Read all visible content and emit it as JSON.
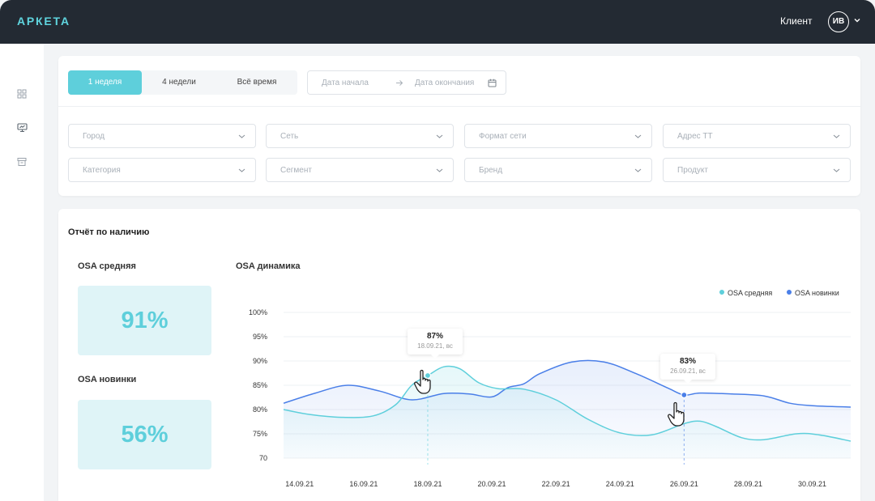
{
  "header": {
    "logo": "АРКЕТА",
    "client_label": "Клиент",
    "avatar_initials": "ИВ"
  },
  "sidebar": {
    "items": [
      {
        "icon": "grid-icon"
      },
      {
        "icon": "monitor-icon"
      },
      {
        "icon": "archive-icon"
      }
    ]
  },
  "period": {
    "tabs": [
      {
        "label": "1 неделя",
        "active": true
      },
      {
        "label": "4 недели",
        "active": false
      },
      {
        "label": "Всё время",
        "active": false
      }
    ],
    "start_placeholder": "Дата начала",
    "end_placeholder": "Дата окончания"
  },
  "filters": {
    "row1": [
      "Город",
      "Сеть",
      "Формат сети",
      "Адрес ТТ"
    ],
    "row2": [
      "Категория",
      "Сегмент",
      "Бренд",
      "Продукт"
    ]
  },
  "report": {
    "title": "Отчёт по наличию",
    "osa_avg_label": "OSA средняя",
    "osa_avg_value": "91%",
    "osa_new_label": "OSA новинки",
    "osa_new_value": "56%",
    "dynamics_title": "OSA динамика"
  },
  "colors": {
    "accent": "#5ecfdb",
    "blue": "#4a7fe8",
    "header": "#232a33"
  },
  "chart_data": {
    "type": "line",
    "title": "OSA динамика",
    "legend": [
      "OSA средняя",
      "OSA новинки"
    ],
    "legend_position": "top-right",
    "y_ticks": [
      "100%",
      "95%",
      "90%",
      "85%",
      "80%",
      "75%",
      "70"
    ],
    "ylim": [
      70,
      100
    ],
    "x_ticks": [
      "14.09.21",
      "16.09.21",
      "18.09.21",
      "20.09.21",
      "22.09.21",
      "24.09.21",
      "26.09.21",
      "28.09.21",
      "30.09.21"
    ],
    "xlim": [
      13.5,
      31.2
    ],
    "series": [
      {
        "name": "OSA средняя",
        "color": "#5ecfdb",
        "points": [
          [
            13.5,
            80
          ],
          [
            14.3,
            79
          ],
          [
            15.3,
            78.4
          ],
          [
            16.3,
            78.7
          ],
          [
            17.0,
            81
          ],
          [
            17.5,
            85
          ],
          [
            18.0,
            87
          ],
          [
            18.5,
            88.8
          ],
          [
            19.0,
            88.4
          ],
          [
            19.6,
            85.5
          ],
          [
            20.2,
            84.3
          ],
          [
            21.0,
            84.2
          ],
          [
            22.0,
            82
          ],
          [
            23.0,
            78
          ],
          [
            24.0,
            75.2
          ],
          [
            25.0,
            74.8
          ],
          [
            26.0,
            77.1
          ],
          [
            26.5,
            77.6
          ],
          [
            27.0,
            76.5
          ],
          [
            27.8,
            74.2
          ],
          [
            28.5,
            73.8
          ],
          [
            29.5,
            75
          ],
          [
            30.2,
            74.8
          ],
          [
            31.2,
            73.5
          ]
        ]
      },
      {
        "name": "OSA новинки",
        "color": "#4a7fe8",
        "points": [
          [
            13.5,
            81.3
          ],
          [
            14.5,
            83.4
          ],
          [
            15.5,
            85
          ],
          [
            16.5,
            83.8
          ],
          [
            17.5,
            82
          ],
          [
            18.5,
            83.3
          ],
          [
            19.3,
            83.2
          ],
          [
            20.0,
            82.6
          ],
          [
            20.5,
            84.5
          ],
          [
            21.0,
            85.3
          ],
          [
            21.5,
            87.4
          ],
          [
            22.5,
            89.8
          ],
          [
            23.5,
            89.8
          ],
          [
            24.5,
            87.4
          ],
          [
            25.5,
            84.4
          ],
          [
            26.0,
            83
          ],
          [
            26.5,
            83.4
          ],
          [
            27.5,
            83.2
          ],
          [
            28.5,
            82.8
          ],
          [
            29.3,
            81.3
          ],
          [
            30.0,
            80.8
          ],
          [
            31.2,
            80.5
          ]
        ]
      }
    ],
    "annotations": [
      {
        "series": "OSA средняя",
        "x": 18.0,
        "y": 87,
        "value": "87%",
        "date": "18.09.21, вс"
      },
      {
        "series": "OSA новинки",
        "x": 26.0,
        "y": 83,
        "value": "83%",
        "date": "26.09.21, вс"
      }
    ]
  }
}
